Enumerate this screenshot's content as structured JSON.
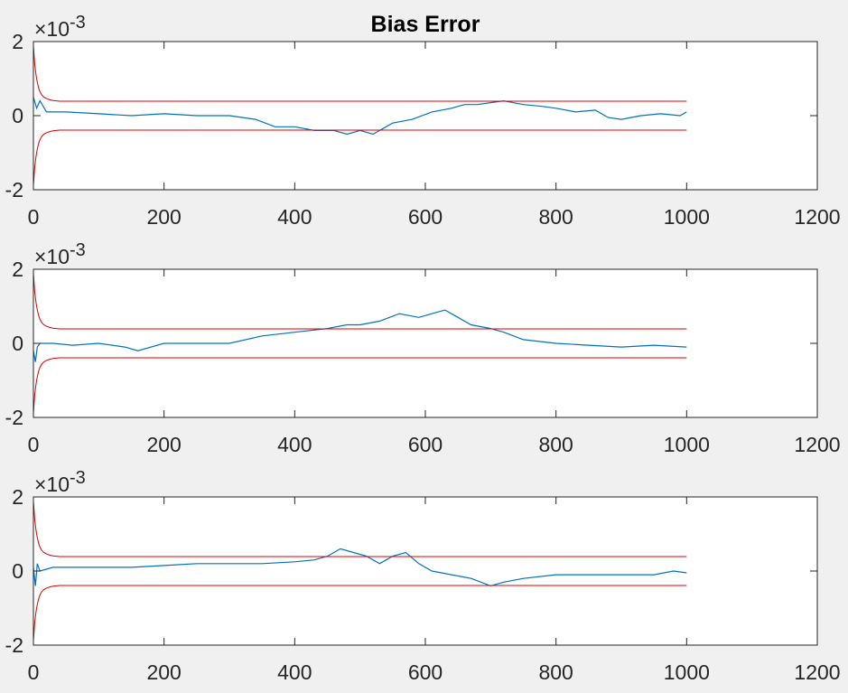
{
  "colors": {
    "background": "#f0f0f0",
    "axes_face": "#ffffff",
    "axes_edge": "#262626",
    "signal": "#0072bd",
    "bounds": "#e00000",
    "text": "#262626"
  },
  "chart_data": [
    {
      "type": "line",
      "title": "Bias Error",
      "xlabel": "",
      "ylabel": "",
      "xlim": [
        0,
        1200
      ],
      "ylim": [
        -0.002,
        0.002
      ],
      "xticks": [
        0,
        200,
        400,
        600,
        800,
        1000,
        1200
      ],
      "xtick_labels": [
        "0",
        "200",
        "400",
        "600",
        "800",
        "1000",
        "1200"
      ],
      "yticks": [
        -0.002,
        0,
        0.002
      ],
      "ytick_labels": [
        "-2",
        "0",
        "2"
      ],
      "y_exponent_label": "×10",
      "y_exponent_power": "-3",
      "grid": false,
      "series": [
        {
          "color": "#0072bd",
          "x": [
            0,
            5,
            10,
            20,
            50,
            100,
            150,
            200,
            250,
            300,
            340,
            370,
            400,
            430,
            460,
            480,
            500,
            520,
            550,
            580,
            610,
            640,
            660,
            680,
            700,
            720,
            750,
            780,
            800,
            830,
            860,
            880,
            900,
            930,
            960,
            990,
            1000
          ],
          "y": [
            0.0005,
            0.0002,
            0.0004,
            0.0001,
            0.0001,
            5e-05,
            0,
            5e-05,
            0,
            0.0,
            -0.0001,
            -0.0003,
            -0.0003,
            -0.0004,
            -0.0004,
            -0.0005,
            -0.0004,
            -0.0005,
            -0.0002,
            -0.0001,
            0.0001,
            0.0002,
            0.0003,
            0.0003,
            0.00035,
            0.0004,
            0.0003,
            0.00025,
            0.0002,
            0.0001,
            0.00015,
            -5e-05,
            -0.0001,
            0.0,
            5e-05,
            0.0,
            0.0001
          ]
        },
        {
          "color": "#e00000",
          "x": [
            0,
            2,
            4,
            6,
            8,
            10,
            13,
            16,
            20,
            25,
            30,
            40,
            60,
            100,
            300,
            600,
            1000
          ],
          "y": [
            0.0019,
            0.0014,
            0.0011,
            0.0009,
            0.00075,
            0.00065,
            0.00055,
            0.0005,
            0.00046,
            0.00043,
            0.00041,
            0.00039,
            0.00039,
            0.00039,
            0.00039,
            0.00039,
            0.00039
          ]
        },
        {
          "color": "#e00000",
          "x": [
            0,
            2,
            4,
            6,
            8,
            10,
            13,
            16,
            20,
            25,
            30,
            40,
            60,
            100,
            300,
            600,
            1000
          ],
          "y": [
            -0.0019,
            -0.0014,
            -0.0011,
            -0.0009,
            -0.00075,
            -0.00065,
            -0.00055,
            -0.0005,
            -0.00046,
            -0.00043,
            -0.00041,
            -0.00039,
            -0.00039,
            -0.00039,
            -0.00039,
            -0.00039,
            -0.00039
          ]
        }
      ]
    },
    {
      "type": "line",
      "title": "",
      "xlabel": "",
      "ylabel": "",
      "xlim": [
        0,
        1200
      ],
      "ylim": [
        -0.002,
        0.002
      ],
      "xticks": [
        0,
        200,
        400,
        600,
        800,
        1000,
        1200
      ],
      "xtick_labels": [
        "0",
        "200",
        "400",
        "600",
        "800",
        "1000",
        "1200"
      ],
      "yticks": [
        -0.002,
        0,
        0.002
      ],
      "ytick_labels": [
        "-2",
        "0",
        "2"
      ],
      "y_exponent_label": "×10",
      "y_exponent_power": "-3",
      "grid": false,
      "series": [
        {
          "color": "#0072bd",
          "x": [
            0,
            3,
            6,
            10,
            30,
            60,
            100,
            140,
            160,
            200,
            250,
            300,
            350,
            400,
            450,
            480,
            500,
            530,
            560,
            590,
            610,
            630,
            650,
            670,
            700,
            720,
            750,
            800,
            850,
            900,
            950,
            1000
          ],
          "y": [
            -0.0002,
            -0.0005,
            -0.0001,
            0.0,
            0.0,
            -5e-05,
            0.0,
            -0.0001,
            -0.0002,
            0.0,
            0.0,
            0.0,
            0.0002,
            0.0003,
            0.0004,
            0.0005,
            0.0005,
            0.0006,
            0.0008,
            0.0007,
            0.0008,
            0.0009,
            0.0007,
            0.0005,
            0.0004,
            0.0003,
            0.0001,
            0.0,
            -5e-05,
            -0.0001,
            -5e-05,
            -0.0001
          ]
        },
        {
          "color": "#e00000",
          "x": [
            0,
            2,
            4,
            6,
            8,
            10,
            13,
            16,
            20,
            25,
            30,
            40,
            60,
            100,
            300,
            600,
            1000
          ],
          "y": [
            0.0019,
            0.0014,
            0.0011,
            0.0009,
            0.00075,
            0.00065,
            0.00055,
            0.0005,
            0.00046,
            0.00043,
            0.00041,
            0.00039,
            0.00039,
            0.00039,
            0.00039,
            0.00039,
            0.00039
          ]
        },
        {
          "color": "#e00000",
          "x": [
            0,
            2,
            4,
            6,
            8,
            10,
            13,
            16,
            20,
            25,
            30,
            40,
            60,
            100,
            300,
            600,
            1000
          ],
          "y": [
            -0.0019,
            -0.0014,
            -0.0011,
            -0.0009,
            -0.00075,
            -0.00065,
            -0.00055,
            -0.0005,
            -0.00046,
            -0.00043,
            -0.00041,
            -0.00039,
            -0.00039,
            -0.00039,
            -0.00039,
            -0.00039,
            -0.00039
          ]
        }
      ]
    },
    {
      "type": "line",
      "title": "",
      "xlabel": "",
      "ylabel": "",
      "xlim": [
        0,
        1200
      ],
      "ylim": [
        -0.002,
        0.002
      ],
      "xticks": [
        0,
        200,
        400,
        600,
        800,
        1000,
        1200
      ],
      "xtick_labels": [
        "0",
        "200",
        "400",
        "600",
        "800",
        "1000",
        "1200"
      ],
      "yticks": [
        -0.002,
        0,
        0.002
      ],
      "ytick_labels": [
        "-2",
        "0",
        "2"
      ],
      "y_exponent_label": "×10",
      "y_exponent_power": "-3",
      "grid": false,
      "series": [
        {
          "color": "#0072bd",
          "x": [
            0,
            3,
            6,
            10,
            30,
            60,
            100,
            150,
            200,
            250,
            300,
            350,
            400,
            430,
            450,
            470,
            490,
            510,
            530,
            550,
            570,
            590,
            610,
            640,
            670,
            700,
            720,
            750,
            800,
            850,
            900,
            950,
            980,
            1000
          ],
          "y": [
            0.0001,
            -0.0004,
            0.0002,
            0.0,
            0.0001,
            0.0001,
            0.0001,
            0.0001,
            0.00015,
            0.0002,
            0.0002,
            0.0002,
            0.00025,
            0.0003,
            0.0004,
            0.0006,
            0.0005,
            0.0004,
            0.0002,
            0.0004,
            0.0005,
            0.0002,
            0.0,
            -0.0001,
            -0.0002,
            -0.0004,
            -0.0003,
            -0.0002,
            -0.0001,
            -0.0001,
            -0.0001,
            -0.0001,
            0.0,
            -5e-05
          ]
        },
        {
          "color": "#e00000",
          "x": [
            0,
            2,
            4,
            6,
            8,
            10,
            13,
            16,
            20,
            25,
            30,
            40,
            60,
            100,
            300,
            600,
            1000
          ],
          "y": [
            0.0019,
            0.0014,
            0.0011,
            0.0009,
            0.00075,
            0.00065,
            0.00055,
            0.0005,
            0.00046,
            0.00043,
            0.00041,
            0.00039,
            0.00039,
            0.00039,
            0.00039,
            0.00039,
            0.00039
          ]
        },
        {
          "color": "#e00000",
          "x": [
            0,
            2,
            4,
            6,
            8,
            10,
            13,
            16,
            20,
            25,
            30,
            40,
            60,
            100,
            300,
            600,
            1000
          ],
          "y": [
            -0.0019,
            -0.0014,
            -0.0011,
            -0.0009,
            -0.00075,
            -0.00065,
            -0.00055,
            -0.0005,
            -0.00046,
            -0.00043,
            -0.00041,
            -0.00039,
            -0.00039,
            -0.00039,
            -0.00039,
            -0.00039,
            -0.00039
          ]
        }
      ]
    }
  ]
}
